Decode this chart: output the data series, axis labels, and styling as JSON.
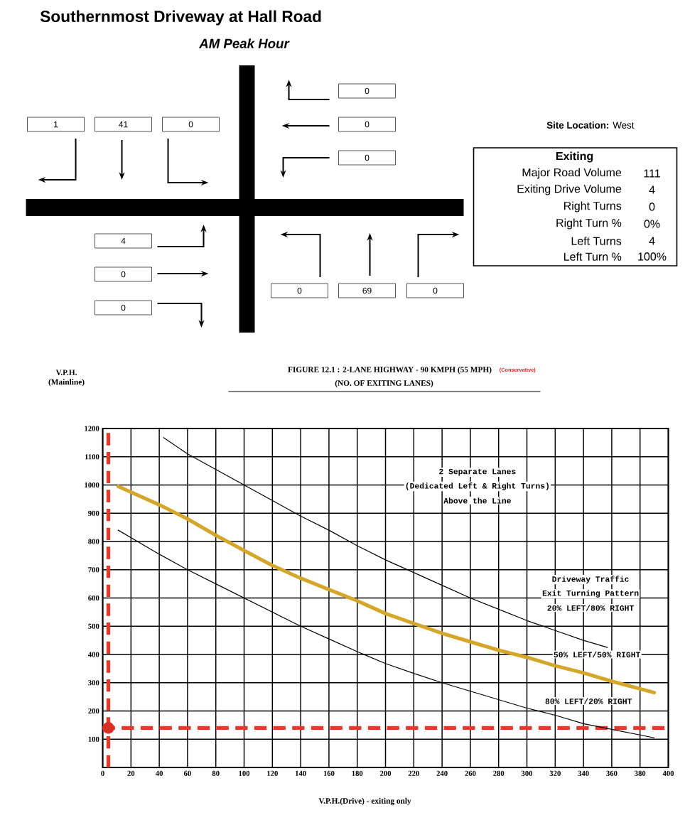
{
  "chart_data": [
    {
      "type": "other",
      "title": "Southernmost Driveway at Hall Road",
      "subtitle": "AM Peak Hour",
      "annotations": [
        "1",
        "41",
        "0",
        "0",
        "0",
        "0",
        "4",
        "0",
        "0",
        "0",
        "69",
        "0",
        "**Site Location:** West",
        "Exiting",
        "Major Road Volume",
        "111",
        "Exiting Drive Volume",
        "4",
        "Right Turns",
        "0",
        "Right Turn %",
        "0%",
        "Left Turns",
        "4",
        "Left Turn %",
        "100%"
      ]
    },
    {
      "type": "line",
      "title": "FIGURE 12.1 : 2-LANE HIGHWAY - 90 KMPH (55 MPH)",
      "subtitle": "(NO. OF EXITING LANES)",
      "xlabel": "V.P.H.(Drive) - exiting only",
      "ylabel": "V.P.H. (Mainline)",
      "xlim": [
        0,
        400
      ],
      "ylim": [
        0,
        1200
      ],
      "xticks": [
        0,
        20,
        40,
        60,
        80,
        100,
        120,
        140,
        160,
        180,
        200,
        220,
        240,
        260,
        280,
        300,
        320,
        340,
        360,
        380,
        400
      ],
      "yticks": [
        100,
        200,
        300,
        400,
        500,
        600,
        700,
        800,
        900,
        1000,
        1100,
        1200
      ],
      "grid": true,
      "series": [
        {
          "name": "20% LEFT/80% RIGHT",
          "color": "#000000",
          "x": [
            43,
            60,
            80,
            100,
            120,
            140,
            160,
            180,
            200,
            220,
            240,
            260,
            280,
            300,
            320,
            340,
            357
          ],
          "values": [
            1168,
            1110,
            1055,
            1000,
            945,
            890,
            840,
            785,
            735,
            690,
            645,
            600,
            560,
            520,
            485,
            450,
            425
          ]
        },
        {
          "name": "50% LEFT/50% RIGHT",
          "color": "#d4a62a",
          "x": [
            11,
            40,
            60,
            80,
            100,
            120,
            140,
            160,
            180,
            200,
            220,
            240,
            260,
            280,
            300,
            320,
            340,
            360,
            390
          ],
          "values": [
            995,
            930,
            880,
            822,
            768,
            715,
            670,
            630,
            590,
            545,
            510,
            475,
            445,
            415,
            390,
            360,
            335,
            305,
            265
          ]
        },
        {
          "name": "80% LEFT/20% RIGHT",
          "color": "#000000",
          "x": [
            11,
            40,
            60,
            80,
            100,
            120,
            140,
            160,
            180,
            200,
            220,
            240,
            260,
            280,
            300,
            320,
            340,
            360,
            390
          ],
          "values": [
            840,
            755,
            700,
            650,
            600,
            550,
            500,
            455,
            410,
            368,
            333,
            300,
            270,
            240,
            210,
            185,
            155,
            135,
            105
          ]
        },
        {
          "type": "scatter",
          "color": "#d93025",
          "x": [
            4
          ],
          "values": [
            140
          ]
        }
      ],
      "ref_lines": [
        {
          "axis": "x",
          "value": 4,
          "color": "#e03a2a",
          "line_style": "dashed"
        },
        {
          "axis": "y",
          "value": 140,
          "color": "#e03a2a",
          "line_style": "dashed"
        }
      ],
      "annotations": [
        "(Conservative)",
        "2 Separate Lanes",
        "(Dedicated Left & Right Turns)",
        "Above the Line",
        "Driveway Traffic",
        "Exit Turning Pattern"
      ]
    }
  ]
}
